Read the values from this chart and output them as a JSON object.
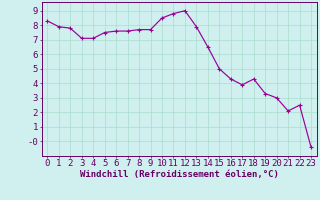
{
  "x": [
    0,
    1,
    2,
    3,
    4,
    5,
    6,
    7,
    8,
    9,
    10,
    11,
    12,
    13,
    14,
    15,
    16,
    17,
    18,
    19,
    20,
    21,
    22,
    23
  ],
  "y": [
    8.3,
    7.9,
    7.8,
    7.1,
    7.1,
    7.5,
    7.6,
    7.6,
    7.7,
    7.7,
    8.5,
    8.8,
    9.0,
    7.9,
    6.5,
    5.0,
    4.3,
    3.9,
    4.3,
    3.3,
    3.0,
    2.1,
    2.5,
    -0.4
  ],
  "line_color": "#990099",
  "marker": "+",
  "marker_size": 3.5,
  "marker_linewidth": 0.8,
  "linewidth": 0.85,
  "bg_color": "#cff0ee",
  "grid_color": "#aaddcc",
  "axis_color": "#660066",
  "xlabel": "Windchill (Refroidissement éolien,°C)",
  "xlabel_fontsize": 6.5,
  "tick_fontsize": 6.5,
  "ylim": [
    -1,
    9.6
  ],
  "xlim": [
    -0.5,
    23.5
  ],
  "yticks": [
    0,
    1,
    2,
    3,
    4,
    5,
    6,
    7,
    8,
    9
  ],
  "ytick_labels": [
    "-0",
    "1",
    "2",
    "3",
    "4",
    "5",
    "6",
    "7",
    "8",
    "9"
  ],
  "xticks": [
    0,
    1,
    2,
    3,
    4,
    5,
    6,
    7,
    8,
    9,
    10,
    11,
    12,
    13,
    14,
    15,
    16,
    17,
    18,
    19,
    20,
    21,
    22,
    23
  ]
}
